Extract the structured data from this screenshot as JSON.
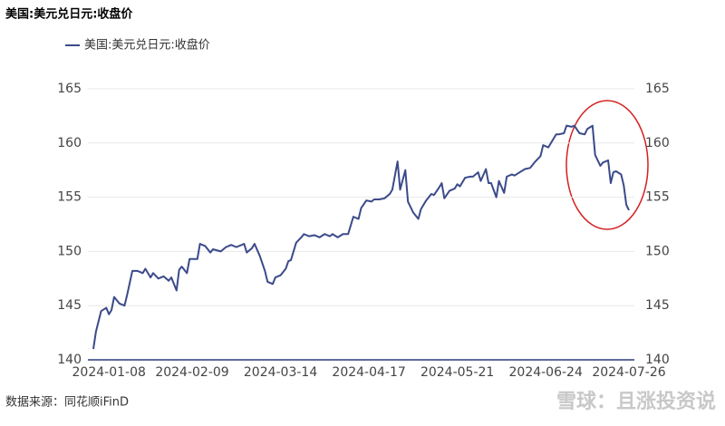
{
  "chart_data": {
    "type": "line",
    "title": "美国:美元兑日元:收盘价",
    "source": "数据来源：同花顺iFinD",
    "watermark": "雪球：且涨投资说",
    "x": [
      "2024-01-02",
      "2024-01-03",
      "2024-01-05",
      "2024-01-07",
      "2024-01-08",
      "2024-01-09",
      "2024-01-10",
      "2024-01-12",
      "2024-01-14",
      "2024-01-15",
      "2024-01-17",
      "2024-01-19",
      "2024-01-21",
      "2024-01-22",
      "2024-01-24",
      "2024-01-25",
      "2024-01-27",
      "2024-01-29",
      "2024-01-31",
      "2024-02-01",
      "2024-02-03",
      "2024-02-04",
      "2024-02-05",
      "2024-02-07",
      "2024-02-08",
      "2024-02-11",
      "2024-02-12",
      "2024-02-14",
      "2024-02-16",
      "2024-02-17",
      "2024-02-20",
      "2024-02-22",
      "2024-02-24",
      "2024-02-26",
      "2024-02-29",
      "2024-03-01",
      "2024-03-03",
      "2024-03-04",
      "2024-03-06",
      "2024-03-08",
      "2024-03-09",
      "2024-03-11",
      "2024-03-12",
      "2024-03-14",
      "2024-03-16",
      "2024-03-17",
      "2024-03-18",
      "2024-03-20",
      "2024-03-22",
      "2024-03-23",
      "2024-03-25",
      "2024-03-27",
      "2024-03-29",
      "2024-03-31",
      "2024-04-02",
      "2024-04-03",
      "2024-04-05",
      "2024-04-07",
      "2024-04-09",
      "2024-04-11",
      "2024-04-13",
      "2024-04-14",
      "2024-04-16",
      "2024-04-18",
      "2024-04-19",
      "2024-04-21",
      "2024-04-23",
      "2024-04-25",
      "2024-04-26",
      "2024-04-28",
      "2024-04-29",
      "2024-05-01",
      "2024-05-02",
      "2024-05-04",
      "2024-05-06",
      "2024-05-07",
      "2024-05-09",
      "2024-05-11",
      "2024-05-12",
      "2024-05-14",
      "2024-05-15",
      "2024-05-16",
      "2024-05-18",
      "2024-05-20",
      "2024-05-21",
      "2024-05-22",
      "2024-05-24",
      "2024-05-26",
      "2024-05-27",
      "2024-05-29",
      "2024-05-30",
      "2024-06-01",
      "2024-06-02",
      "2024-06-03",
      "2024-06-05",
      "2024-06-06",
      "2024-06-08",
      "2024-06-09",
      "2024-06-11",
      "2024-06-12",
      "2024-06-14",
      "2024-06-16",
      "2024-06-18",
      "2024-06-20",
      "2024-06-22",
      "2024-06-23",
      "2024-06-25",
      "2024-06-28",
      "2024-06-29",
      "2024-07-01",
      "2024-07-02",
      "2024-07-04",
      "2024-07-05",
      "2024-07-07",
      "2024-07-09",
      "2024-07-10",
      "2024-07-12",
      "2024-07-13",
      "2024-07-15",
      "2024-07-16",
      "2024-07-18",
      "2024-07-19",
      "2024-07-20",
      "2024-07-21",
      "2024-07-23",
      "2024-07-24",
      "2024-07-25",
      "2024-07-26"
    ],
    "series": [
      {
        "name": "美国:美元兑日元:收盘价",
        "color": "#3b4a8a",
        "values": [
          141.0,
          142.6,
          144.5,
          144.8,
          144.2,
          144.6,
          145.8,
          145.2,
          145.0,
          146.0,
          148.2,
          148.2,
          148.0,
          148.4,
          147.6,
          148.0,
          147.5,
          147.7,
          147.3,
          147.6,
          146.4,
          148.3,
          148.6,
          148.0,
          149.3,
          149.3,
          150.7,
          150.5,
          149.9,
          150.2,
          150.0,
          150.4,
          150.6,
          150.4,
          150.7,
          149.9,
          150.3,
          150.7,
          149.6,
          148.2,
          147.2,
          147.0,
          147.6,
          147.8,
          148.4,
          149.1,
          149.2,
          150.8,
          151.3,
          151.6,
          151.4,
          151.5,
          151.3,
          151.6,
          151.4,
          151.6,
          151.3,
          151.6,
          151.6,
          153.2,
          153.0,
          154.0,
          154.7,
          154.6,
          154.8,
          154.8,
          154.9,
          155.3,
          155.7,
          158.3,
          155.7,
          157.5,
          154.6,
          153.6,
          153.0,
          153.9,
          154.7,
          155.3,
          155.2,
          155.9,
          156.3,
          154.9,
          155.6,
          155.8,
          156.2,
          156.0,
          156.8,
          156.9,
          156.9,
          157.3,
          156.5,
          157.6,
          156.3,
          156.3,
          155.0,
          156.5,
          155.4,
          156.9,
          157.1,
          157.0,
          157.3,
          157.6,
          157.7,
          158.3,
          158.8,
          159.8,
          159.6,
          160.8,
          160.8,
          160.9,
          161.6,
          161.5,
          161.6,
          160.9,
          160.8,
          161.3,
          161.6,
          158.9,
          157.9,
          158.2,
          158.4,
          156.3,
          157.3,
          157.4,
          157.1,
          156.1,
          154.3,
          153.8
        ]
      }
    ],
    "xlim": [
      "2024-01-02",
      "2024-07-26"
    ],
    "xticks": [
      "2024-01-08",
      "2024-02-09",
      "2024-03-14",
      "2024-04-17",
      "2024-05-21",
      "2024-06-24",
      "2024-07-26"
    ],
    "ylim": [
      140,
      165
    ],
    "yticks": [
      140,
      145,
      150,
      155,
      160,
      165
    ],
    "y2lim": [
      140,
      165
    ],
    "y2ticks": [
      140,
      145,
      150,
      155,
      160,
      165
    ],
    "grid": true
  }
}
